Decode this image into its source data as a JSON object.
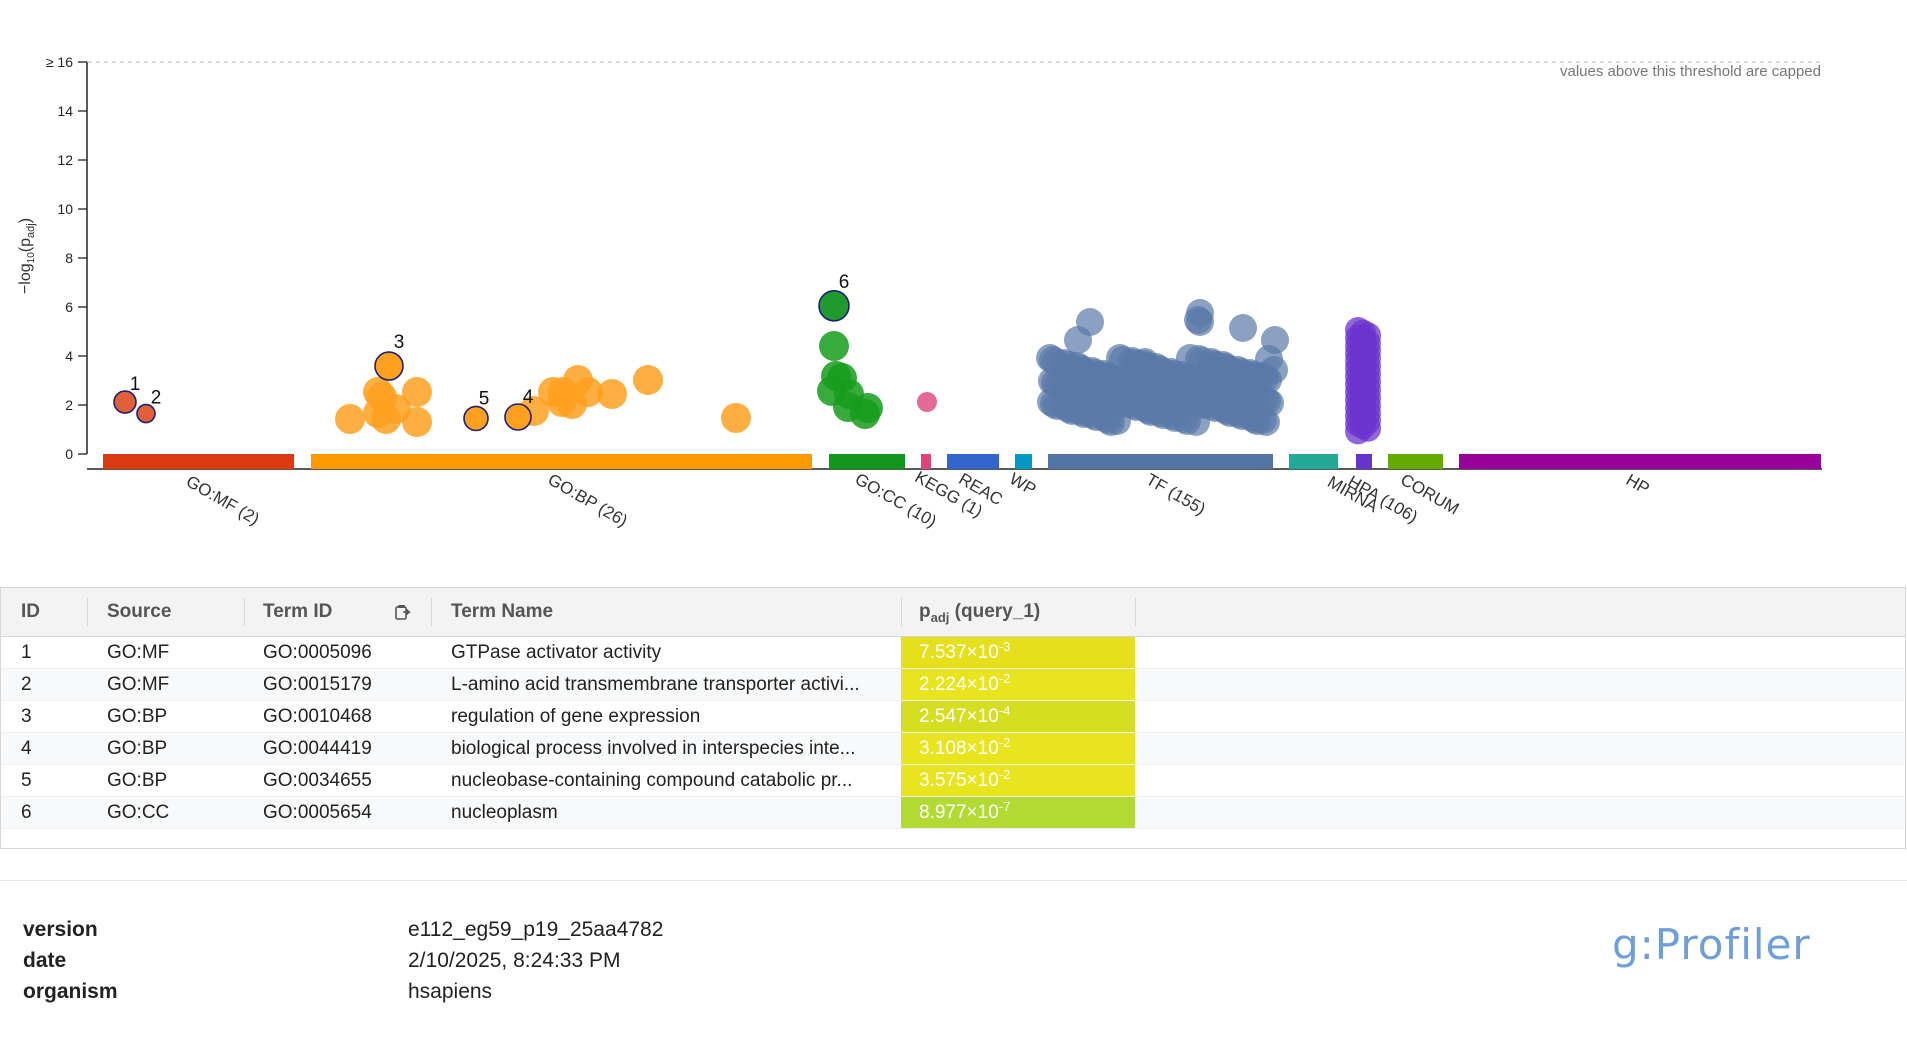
{
  "chart_data": {
    "type": "scatter",
    "ylabel_base": "−log",
    "ylabel_sub1": "10",
    "ylabel_mid": "(p",
    "ylabel_sub2": "adj",
    "ylabel_end": ")",
    "y_ticks": [
      "0",
      "2",
      "4",
      "6",
      "8",
      "10",
      "12",
      "14",
      "≥ 16"
    ],
    "ylim": [
      0,
      16
    ],
    "cap_note": "values above this threshold are capped",
    "sources": [
      {
        "label": "GO:MF (2)",
        "color": "#dc3912"
      },
      {
        "label": "GO:BP (26)",
        "color": "#ff9900"
      },
      {
        "label": "GO:CC (10)",
        "color": "#109618"
      },
      {
        "label": "KEGG (1)",
        "color": "#dd4477"
      },
      {
        "label": "REAC",
        "color": "#3366cc"
      },
      {
        "label": "WP",
        "color": "#0099c6"
      },
      {
        "label": "TF (155)",
        "color": "#5574a6"
      },
      {
        "label": "MIRNA",
        "color": "#22aa99"
      },
      {
        "label": "HPA (106)",
        "color": "#6633cc"
      },
      {
        "label": "CORUM",
        "color": "#66aa00"
      },
      {
        "label": "HP",
        "color": "#990099"
      }
    ],
    "highlighted": [
      {
        "id": "1",
        "source": "GO:MF",
        "y": 2.12
      },
      {
        "id": "2",
        "source": "GO:MF",
        "y": 1.65
      },
      {
        "id": "3",
        "source": "GO:BP",
        "y": 3.59
      },
      {
        "id": "4",
        "source": "GO:BP",
        "y": 1.51
      },
      {
        "id": "5",
        "source": "GO:BP",
        "y": 1.45
      },
      {
        "id": "6",
        "source": "GO:CC",
        "y": 6.05
      }
    ]
  },
  "table": {
    "headers": {
      "id": "ID",
      "source": "Source",
      "term_id": "Term ID",
      "term_name": "Term Name",
      "p_main": "p",
      "p_sub": "adj",
      "p_query": " (query_1)"
    },
    "rows": [
      {
        "id": "1",
        "source": "GO:MF",
        "term_id": "GO:0005096",
        "term_name": "GTPase activator activity",
        "p_mant": "7.537×10",
        "p_exp": "-3",
        "color": "#e6e01c"
      },
      {
        "id": "2",
        "source": "GO:MF",
        "term_id": "GO:0015179",
        "term_name": "L-amino acid transmembrane transporter activi...",
        "p_mant": "2.224×10",
        "p_exp": "-2",
        "color": "#e8e41d"
      },
      {
        "id": "3",
        "source": "GO:BP",
        "term_id": "GO:0010468",
        "term_name": "regulation of gene expression",
        "p_mant": "2.547×10",
        "p_exp": "-4",
        "color": "#d6de22"
      },
      {
        "id": "4",
        "source": "GO:BP",
        "term_id": "GO:0044419",
        "term_name": "biological process involved in interspecies inte...",
        "p_mant": "3.108×10",
        "p_exp": "-2",
        "color": "#e8e41d"
      },
      {
        "id": "5",
        "source": "GO:BP",
        "term_id": "GO:0034655",
        "term_name": "nucleobase-containing compound catabolic pr...",
        "p_mant": "3.575×10",
        "p_exp": "-2",
        "color": "#e8e41d"
      },
      {
        "id": "6",
        "source": "GO:CC",
        "term_id": "GO:0005654",
        "term_name": "nucleoplasm",
        "p_mant": "8.977×10",
        "p_exp": "-7",
        "color": "#b3d933"
      }
    ]
  },
  "footer": {
    "version_label": "version",
    "version_value": "e112_eg59_p19_25aa4782",
    "date_label": "date",
    "date_value": "2/10/2025, 8:24:33 PM",
    "organism_label": "organism",
    "organism_value": "hsapiens",
    "brand": "g:Profiler"
  }
}
